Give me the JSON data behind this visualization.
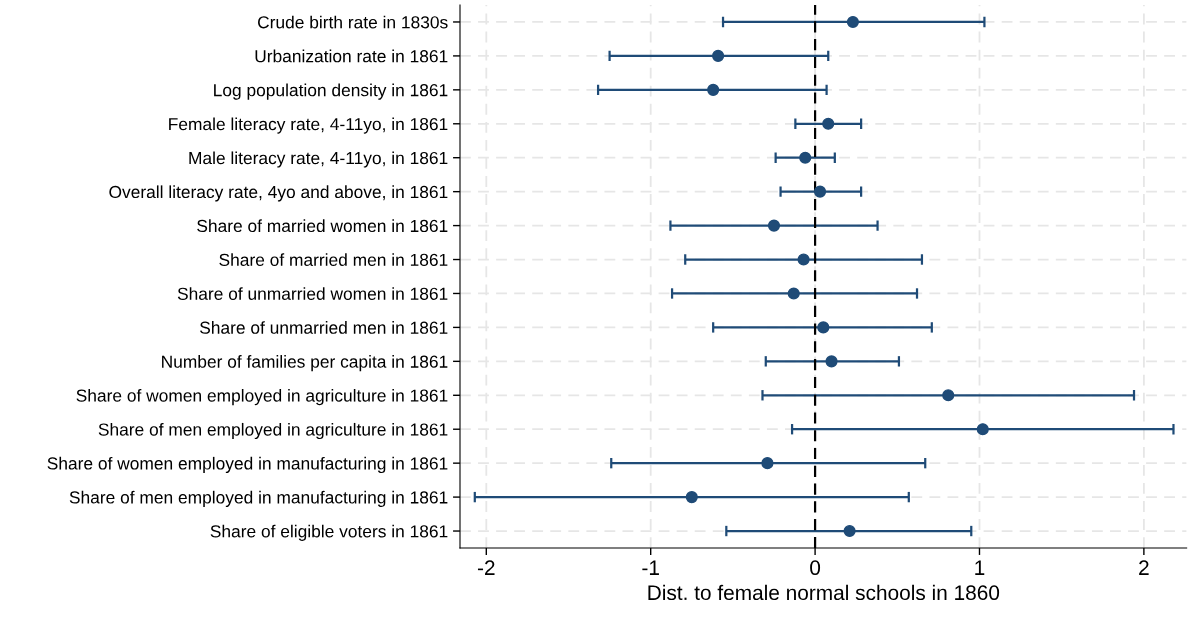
{
  "chart_data": {
    "type": "scatter",
    "orientation": "horizontal",
    "xlabel": "Dist. to female normal schools in 1860",
    "categories": [
      "Crude birth rate in 1830s",
      "Urbanization rate in 1861",
      "Log population density in 1861",
      "Female literacy rate, 4-11yo, in 1861",
      "Male literacy rate, 4-11yo, in 1861",
      "Overall literacy rate, 4yo and above, in 1861",
      "Share of married women in 1861",
      "Share of married men in 1861",
      "Share of unmarried women in 1861",
      "Share of unmarried men in 1861",
      "Number of families per capita in 1861",
      "Share of women employed in agriculture in 1861",
      "Share of men employed in agriculture in 1861",
      "Share of women employed in manufacturing in 1861",
      "Share of men employed in manufacturing in 1861",
      "Share of eligible voters in 1861"
    ],
    "series": [
      {
        "color": "#1f4b77",
        "values": [
          0.23,
          -0.59,
          -0.62,
          0.08,
          -0.06,
          0.03,
          -0.25,
          -0.07,
          -0.13,
          0.05,
          0.1,
          0.81,
          1.02,
          -0.29,
          -0.75,
          0.21
        ],
        "errors": [
          [
            -0.56,
            1.03
          ],
          [
            -1.25,
            0.08
          ],
          [
            -1.32,
            0.07
          ],
          [
            -0.12,
            0.28
          ],
          [
            -0.24,
            0.12
          ],
          [
            -0.21,
            0.28
          ],
          [
            -0.88,
            0.38
          ],
          [
            -0.79,
            0.65
          ],
          [
            -0.87,
            0.62
          ],
          [
            -0.62,
            0.71
          ],
          [
            -0.3,
            0.51
          ],
          [
            -0.32,
            1.94
          ],
          [
            -0.14,
            2.18
          ],
          [
            -1.24,
            0.67
          ],
          [
            -2.07,
            0.57
          ],
          [
            -0.54,
            0.95
          ]
        ]
      }
    ],
    "xlim": [
      -2.16,
      2.26
    ],
    "xticks": [
      -2,
      -1,
      0,
      1,
      2
    ],
    "ref_lines": [
      {
        "axis": "x",
        "value": 0,
        "color": "#000000",
        "line_style": "dashed"
      }
    ],
    "grid": true,
    "marker": "circle"
  }
}
